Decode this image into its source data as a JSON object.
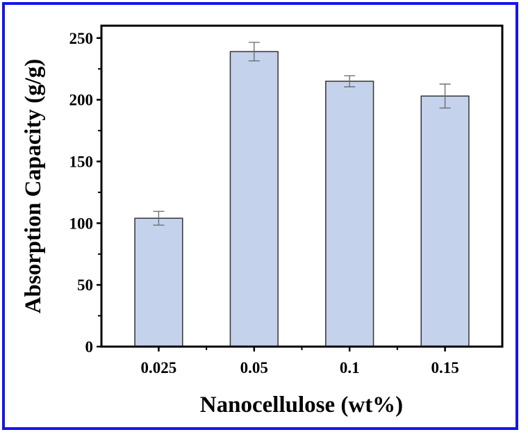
{
  "chart_data": {
    "type": "bar",
    "title": "",
    "xlabel": "Nanocellulose (wt%)",
    "ylabel": "Absorption Capacity (g/g)",
    "categories": [
      "0.025",
      "0.05",
      "0.1",
      "0.15"
    ],
    "values": [
      104,
      239,
      215,
      203
    ],
    "errors": [
      5.6,
      7.5,
      4.5,
      9.7
    ],
    "ylim": [
      0,
      260
    ],
    "xlim": [
      0.4,
      4.6
    ],
    "yticks": [
      0,
      50,
      100,
      150,
      200,
      250
    ],
    "grid": false,
    "colors": {
      "bar": "#c5d2ec",
      "bar_edge": "#333333",
      "error": "#666666",
      "border": "#1414f0"
    }
  }
}
